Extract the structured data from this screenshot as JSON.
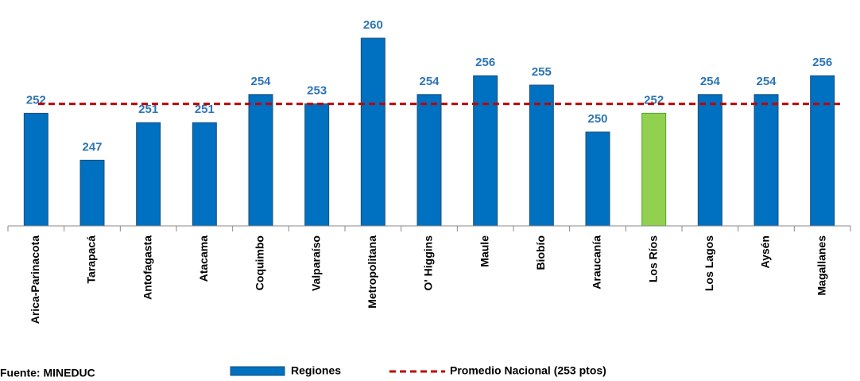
{
  "chart_data": {
    "type": "bar",
    "categories": [
      "Arica-Parinacota",
      "Tarapacá",
      "Antofagasta",
      "Atacama",
      "Coquimbo",
      "Valparaíso",
      "Metropolitana",
      "O' Higgins",
      "Maule",
      "Biobío",
      "Araucanía",
      "Los Ríos",
      "Los Lagos",
      "Aysén",
      "Magallanes"
    ],
    "series": [
      {
        "name": "Regiones",
        "color": "#0070c0",
        "colors": [
          "#0070c0",
          "#0070c0",
          "#0070c0",
          "#0070c0",
          "#0070c0",
          "#0070c0",
          "#0070c0",
          "#0070c0",
          "#0070c0",
          "#0070c0",
          "#0070c0",
          "#92d050",
          "#0070c0",
          "#0070c0",
          "#0070c0"
        ],
        "values": [
          252,
          247,
          251,
          251,
          254,
          253,
          260,
          254,
          256,
          255,
          250,
          252,
          254,
          254,
          256
        ]
      }
    ],
    "reference_line": {
      "name": "Promedio Nacional (253 ptos)",
      "value": 253,
      "color": "#c00000"
    },
    "ylim": [
      240,
      260
    ],
    "source": "Fuente: MINEDUC"
  }
}
